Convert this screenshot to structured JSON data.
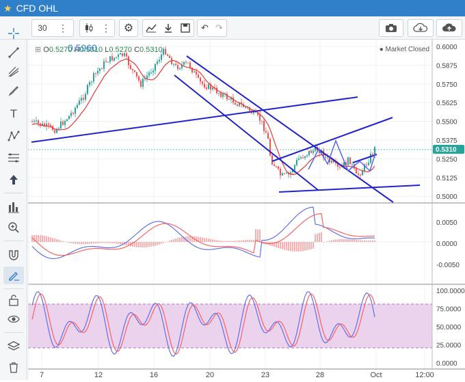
{
  "window": {
    "title": "CFD OHL"
  },
  "toolbar": {
    "interval": "30"
  },
  "legend": {
    "price_overlay": "0.5960",
    "open": "0.5270",
    "high": "0.5310",
    "low": "0.5270",
    "close": "0.5310",
    "o_prefix": "O",
    "h_prefix": "H",
    "l_prefix": "L",
    "c_prefix": "C",
    "market_status": "Market Closed"
  },
  "price_axis": {
    "ticks": [
      "0.6000",
      "0.5875",
      "0.5750",
      "0.5625",
      "0.5500",
      "0.5375",
      "0.5250",
      "0.5125",
      "0.5000"
    ],
    "last_price": "0.5310",
    "last_price_color": "#26a69a"
  },
  "macd_axis": {
    "ticks": [
      "0.0050",
      "0.0000",
      "-0.0050"
    ]
  },
  "stoch_axis": {
    "ticks": [
      "100.0000",
      "75.0000",
      "50.0000",
      "25.0000",
      "0.0000"
    ]
  },
  "time_axis": {
    "ticks": [
      "7",
      "12",
      "16",
      "20",
      "23",
      "28",
      "Oct",
      "12:00"
    ]
  },
  "icons": [
    "star-icon",
    "crosshair-icon",
    "line-icon",
    "pitchfork-icon",
    "brush-icon",
    "text-icon",
    "pattern-icon",
    "fib-icon",
    "arrow-up-icon",
    "measure-icon",
    "zoom-icon",
    "magnet-icon",
    "draw-mode-icon",
    "lock-icon",
    "eye-icon",
    "layers-icon",
    "trash-icon",
    "camera-icon",
    "cloud-download-icon",
    "cloud-upload-icon",
    "candles-icon",
    "indicator-icon",
    "compare-icon",
    "save-icon",
    "undo-icon",
    "redo-icon",
    "gear-icon",
    "dots-icon"
  ],
  "colors": {
    "up": "#26a69a",
    "down": "#ef5350",
    "trend": "#2222cc",
    "ma": "#e53935",
    "macd": "#5566ee",
    "signal": "#ff5555",
    "stoch_fill": "#e6c8ea",
    "accent": "#2f80c8"
  }
}
